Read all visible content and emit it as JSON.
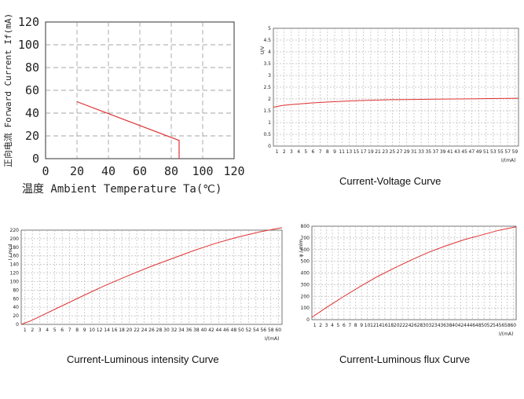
{
  "chart_data": [
    {
      "id": "derating",
      "type": "line",
      "title": "",
      "xlabel": "温度 Ambient Temperature Ta(℃)",
      "ylabel": "正向电流 Forward Current If(mA)",
      "xlim": [
        0,
        120
      ],
      "ylim": [
        0,
        120
      ],
      "xticks": [
        "0",
        "20",
        "40",
        "60",
        "80",
        "100",
        "120"
      ],
      "yticks": [
        "0",
        "20",
        "40",
        "60",
        "80",
        "100",
        "120"
      ],
      "grid": true,
      "series": [
        {
          "color": "#e03030",
          "x": [
            20,
            85,
            85
          ],
          "y": [
            50,
            16,
            0
          ]
        }
      ]
    },
    {
      "id": "current-voltage",
      "type": "line",
      "title": "Current-Voltage Curve",
      "xlabel": "I/(mA)",
      "ylabel": "U/V",
      "xlim": [
        1,
        60
      ],
      "ylim": [
        0,
        5
      ],
      "xticks": [
        "1",
        "2",
        "3",
        "4",
        "5",
        "6",
        "7",
        "8",
        "9",
        "11",
        "13",
        "15",
        "17",
        "19",
        "21",
        "23",
        "25",
        "27",
        "29",
        "31",
        "33",
        "35",
        "37",
        "39",
        "41",
        "43",
        "45",
        "47",
        "49",
        "51",
        "53",
        "55",
        "57",
        "59"
      ],
      "yticks": [
        "0",
        "0.5",
        "1",
        "1.5",
        "2",
        "2.5",
        "3",
        "3.5",
        "4",
        "4.5",
        "5"
      ],
      "grid": true,
      "series": [
        {
          "color": "#e03030",
          "x": [
            1,
            3,
            5,
            8,
            10,
            15,
            20,
            25,
            30,
            35,
            40,
            45,
            50,
            55,
            60
          ],
          "y": [
            1.65,
            1.72,
            1.76,
            1.8,
            1.83,
            1.88,
            1.92,
            1.95,
            1.97,
            1.98,
            1.99,
            2.0,
            2.01,
            2.02,
            2.03
          ]
        }
      ]
    },
    {
      "id": "current-luminous-intensity",
      "type": "line",
      "title": "Current-Luminous intensity Curve",
      "xlabel": "I/(mA)",
      "ylabel": "I / mcd",
      "xlim": [
        1,
        60
      ],
      "ylim": [
        0,
        230
      ],
      "xticks": [
        "1",
        "2",
        "3",
        "4",
        "5",
        "6",
        "7",
        "8",
        "9",
        "10",
        "12",
        "14",
        "16",
        "18",
        "20",
        "22",
        "24",
        "26",
        "28",
        "30",
        "32",
        "34",
        "36",
        "38",
        "40",
        "42",
        "44",
        "46",
        "48",
        "50",
        "52",
        "54",
        "56",
        "58",
        "60"
      ],
      "yticks": [
        "0",
        "20",
        "40",
        "60",
        "80",
        "100",
        "120",
        "140",
        "160",
        "180",
        "200",
        "220"
      ],
      "grid": true,
      "series": [
        {
          "color": "#e03030",
          "x": [
            1,
            3,
            5,
            10,
            15,
            20,
            25,
            30,
            35,
            40,
            45,
            50,
            55,
            60
          ],
          "y": [
            0,
            8,
            18,
            44,
            70,
            95,
            118,
            140,
            160,
            180,
            198,
            213,
            226,
            236
          ]
        }
      ]
    },
    {
      "id": "current-luminous-flux",
      "type": "line",
      "title": "Current-Luminous flux Curve",
      "xlabel": "I/(mA)",
      "ylabel": "φ / mlm",
      "xlim": [
        1,
        60
      ],
      "ylim": [
        0,
        800
      ],
      "xticks": [
        "1",
        "2",
        "3",
        "4",
        "5",
        "6",
        "7",
        "8",
        "9",
        "10",
        "12",
        "14",
        "16",
        "18",
        "20",
        "22",
        "24",
        "26",
        "28",
        "30",
        "32",
        "34",
        "36",
        "38",
        "40",
        "42",
        "44",
        "46",
        "48",
        "50",
        "52",
        "54",
        "56",
        "58",
        "60"
      ],
      "yticks": [
        "0",
        "100",
        "200",
        "300",
        "400",
        "500",
        "600",
        "700",
        "800"
      ],
      "grid": true,
      "series": [
        {
          "color": "#e03030",
          "x": [
            1,
            5,
            10,
            15,
            20,
            25,
            30,
            35,
            40,
            45,
            50,
            55,
            60
          ],
          "y": [
            20,
            100,
            195,
            285,
            370,
            445,
            515,
            580,
            635,
            685,
            725,
            765,
            795
          ]
        }
      ]
    }
  ]
}
